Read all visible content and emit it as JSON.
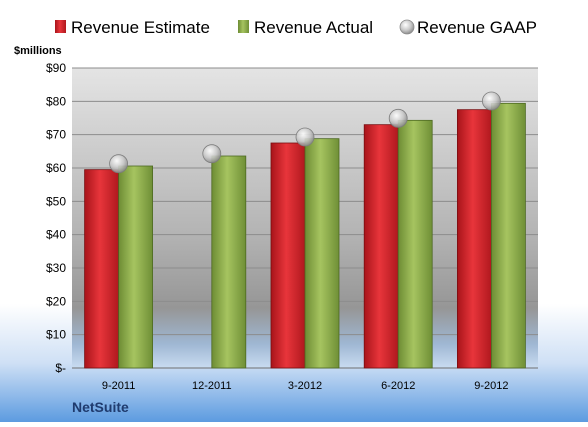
{
  "chart_data": {
    "type": "bar",
    "categories": [
      "9-2011",
      "12-2011",
      "3-2012",
      "6-2012",
      "9-2012"
    ],
    "series": [
      {
        "name": "Revenue Estimate",
        "kind": "bar",
        "color": "#d9262c",
        "values": [
          59.5,
          null,
          67.5,
          73,
          77.5
        ]
      },
      {
        "name": "Revenue Actual",
        "kind": "bar",
        "color": "#8fae4f",
        "values": [
          60.6,
          63.6,
          68.8,
          74.3,
          79.4
        ]
      },
      {
        "name": "Revenue GAAP",
        "kind": "marker",
        "color": "#c0c0c0",
        "values": [
          61.3,
          64.3,
          69.3,
          74.9,
          80.1
        ]
      }
    ],
    "ylabel": "$millions",
    "ylim": [
      0,
      90
    ],
    "yticks": [
      0,
      10,
      20,
      30,
      40,
      50,
      60,
      70,
      80,
      90
    ],
    "ytick_labels": [
      "$-",
      "$10",
      "$20",
      "$30",
      "$40",
      "$50",
      "$60",
      "$70",
      "$80",
      "$90"
    ],
    "grid": true,
    "legend_position": "top"
  },
  "brand": "NetSuite",
  "colors": {
    "background_top": "#ffffff",
    "background_bottom": "#5c9be0",
    "plot_top": "#e6e6e6",
    "plot_mid": "#9a9a9a",
    "grid": "#8c8c8c",
    "brand_text": "#1f3b6e"
  }
}
